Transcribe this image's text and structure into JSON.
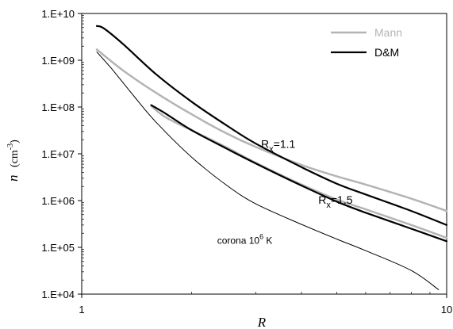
{
  "chart_data": {
    "type": "line",
    "xlabel": "R",
    "ylabel": "n",
    "ylabel_unit": "(cm",
    "ylabel_unit_exp": "-3",
    "ylabel_unit_close": ")",
    "x_scale": "log",
    "y_scale": "log",
    "xlim": [
      1,
      10
    ],
    "ylim": [
      10000,
      10000000000
    ],
    "x_ticks": [
      {
        "value": 1,
        "label": "1"
      },
      {
        "value": 10,
        "label": "10"
      }
    ],
    "y_ticks": [
      {
        "value": 10000,
        "label": "1.E+04"
      },
      {
        "value": 100000,
        "label": "1.E+05"
      },
      {
        "value": 1000000,
        "label": "1.E+06"
      },
      {
        "value": 10000000,
        "label": "1.E+07"
      },
      {
        "value": 100000000,
        "label": "1.E+08"
      },
      {
        "value": 1000000000,
        "label": "1.E+09"
      },
      {
        "value": 10000000000,
        "label": "1.E+10"
      }
    ],
    "grid": false,
    "legend_position": "top-right",
    "legend": [
      {
        "label": "Mann",
        "color": "#b4b4b4"
      },
      {
        "label": "D&M",
        "color": "#000000"
      }
    ],
    "series": [
      {
        "name": "Mann",
        "group": "Rx=1.1",
        "color": "#b4b4b4",
        "width": 2.5,
        "x": [
          1.1,
          1.3,
          1.6,
          2.0,
          2.5,
          3.0,
          4.0,
          5.0,
          6.0,
          8.0,
          10.0
        ],
        "y": [
          1700000000.0,
          600000000.0,
          200000000.0,
          70000000.0,
          27000000.0,
          14000000.0,
          5800000.0,
          3300000.0,
          2200000.0,
          1100000.0,
          600000.0
        ]
      },
      {
        "name": "D&M",
        "group": "Rx=1.1",
        "color": "#000000",
        "width": 2.2,
        "x": [
          1.1,
          1.15,
          1.3,
          1.6,
          2.0,
          2.5,
          3.0,
          4.0,
          5.0,
          6.0,
          8.0,
          10.0
        ],
        "y": [
          5400000000.0,
          4800000000.0,
          2200000000.0,
          500000000.0,
          130000000.0,
          40000000.0,
          16500000.0,
          5200000.0,
          2300000.0,
          1350000.0,
          600000.0,
          300000.0
        ]
      },
      {
        "name": "Mann",
        "group": "Rx=1.5",
        "color": "#b4b4b4",
        "width": 2.5,
        "x": [
          1.55,
          1.7,
          2.0,
          2.5,
          3.0,
          4.0,
          5.0,
          6.0,
          8.0,
          10.0
        ],
        "y": [
          105000000.0,
          60000000.0,
          32000000.0,
          13500000.0,
          6400000.0,
          2200000.0,
          1050000.0,
          650000.0,
          300000.0,
          160000.0
        ]
      },
      {
        "name": "D&M",
        "group": "Rx=1.5",
        "color": "#000000",
        "width": 2.2,
        "x": [
          1.55,
          1.7,
          2.0,
          2.5,
          3.0,
          4.0,
          5.0,
          6.0,
          8.0,
          10.0
        ],
        "y": [
          110000000.0,
          72000000.0,
          32000000.0,
          12800000.0,
          6200000.0,
          2100000.0,
          950000.0,
          550000.0,
          250000.0,
          135000.0
        ]
      },
      {
        "name": "corona 10^6 K",
        "color": "#000000",
        "width": 1,
        "x": [
          1.1,
          1.2,
          1.4,
          1.6,
          2.0,
          2.5,
          3.0,
          4.0,
          5.0,
          6.0,
          8.0,
          9.5
        ],
        "y": [
          1500000000.0,
          700000000.0,
          160000000.0,
          47000000.0,
          8500000.0,
          2100000.0,
          850000.0,
          310000.0,
          150000.0,
          85000.0,
          32000.0,
          12500.0
        ]
      }
    ],
    "annotations": [
      {
        "text": "R",
        "sub": "x",
        "rest": "=1.1",
        "x": 3.1,
        "y": 13500000.0
      },
      {
        "text": "R",
        "sub": "x",
        "rest": "=1.5",
        "x": 4.45,
        "y": 850000.0
      },
      {
        "text": "corona 10",
        "sup": "6",
        "rest": " K",
        "x": 2.35,
        "y": 120000.0
      }
    ]
  }
}
